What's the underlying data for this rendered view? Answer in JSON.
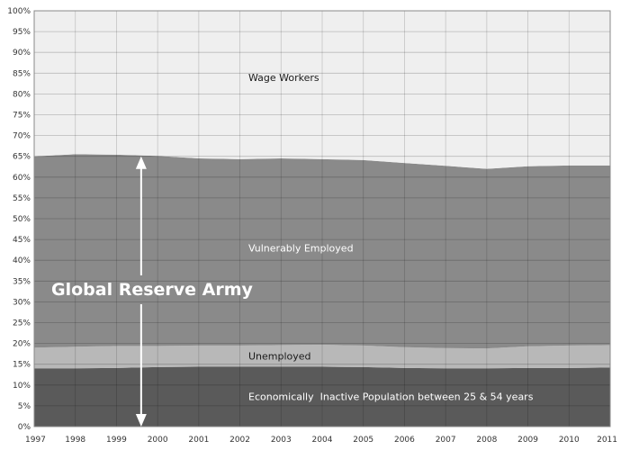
{
  "chart_data": {
    "type": "area",
    "stacked": true,
    "x": [
      "1997",
      "1998",
      "1999",
      "2000",
      "2001",
      "2002",
      "2003",
      "2004",
      "2005",
      "2006",
      "2007",
      "2008",
      "2009",
      "2010",
      "2011"
    ],
    "series": [
      {
        "name": "Economically  Inactive Population between 25 & 54 years",
        "values": [
          14.0,
          14.0,
          14.1,
          14.3,
          14.4,
          14.4,
          14.4,
          14.4,
          14.3,
          14.1,
          14.0,
          14.0,
          14.1,
          14.1,
          14.2
        ],
        "color": "#5a5a5a",
        "label_color": "#ffffff"
      },
      {
        "name": "Unemployed",
        "values": [
          5.0,
          5.2,
          5.3,
          5.1,
          5.1,
          5.1,
          5.2,
          5.3,
          5.2,
          5.0,
          4.9,
          4.8,
          5.2,
          5.4,
          5.4
        ],
        "color": "#b8b8b8",
        "label_color": "#1a1a1a"
      },
      {
        "name": "Vulnerably Employed",
        "values": [
          46.0,
          46.3,
          46.0,
          45.7,
          45.0,
          44.8,
          44.9,
          44.6,
          44.6,
          44.3,
          43.8,
          43.2,
          43.3,
          43.3,
          43.2
        ],
        "color": "#8a8a8a",
        "label_color": "#ffffff"
      },
      {
        "name": "Wage Workers",
        "values": [
          35.0,
          34.5,
          34.6,
          34.9,
          35.5,
          35.7,
          35.5,
          35.7,
          35.9,
          36.6,
          37.3,
          38.0,
          37.4,
          37.2,
          37.2
        ],
        "color": "#efefef",
        "label_color": "#1a1a1a"
      }
    ],
    "y_ticks": [
      "0%",
      "5%",
      "10%",
      "15%",
      "20%",
      "25%",
      "30%",
      "35%",
      "40%",
      "45%",
      "50%",
      "55%",
      "60%",
      "65%",
      "70%",
      "75%",
      "80%",
      "85%",
      "90%",
      "95%",
      "100%"
    ],
    "ylim": [
      0,
      100
    ],
    "grid": true,
    "annotation": {
      "text": "Global Reserve Army",
      "arrow_x": "1999.6",
      "arrow_from": 0,
      "arrow_to": 65
    }
  }
}
